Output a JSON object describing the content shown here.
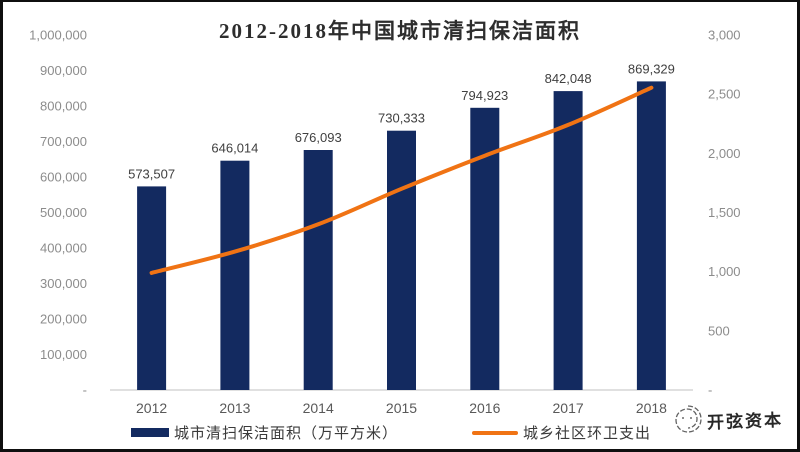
{
  "title": "2012-2018年中国城市清扫保洁面积",
  "legend": {
    "bar_label": "城市清扫保洁面积（万平方米）",
    "line_label": "城乡社区环卫支出"
  },
  "watermark": {
    "text": "开弦资本"
  },
  "chart_data": {
    "type": "bar+line",
    "title": "2012-2018年中国城市清扫保洁面积",
    "categories": [
      "2012",
      "2013",
      "2014",
      "2015",
      "2016",
      "2017",
      "2018"
    ],
    "series": [
      {
        "name": "城市清扫保洁面积（万平方米）",
        "type": "bar",
        "axis": "left",
        "color": "#132A60",
        "values": [
          573507,
          646014,
          676093,
          730333,
          794923,
          842048,
          869329
        ],
        "labels": [
          "573,507",
          "646,014",
          "676,093",
          "730,333",
          "794,923",
          "842,048",
          "869,329"
        ]
      },
      {
        "name": "城乡社区环卫支出",
        "type": "line",
        "axis": "right",
        "color": "#F07314",
        "values_estimated_from_axis": true,
        "values": [
          990,
          1170,
          1400,
          1700,
          1980,
          2240,
          2555
        ]
      }
    ],
    "left_axis": {
      "min": 0,
      "max": 1000000,
      "ticks": [
        "1,000,000",
        "900,000",
        "800,000",
        "700,000",
        "600,000",
        "500,000",
        "400,000",
        "300,000",
        "200,000",
        "100,000",
        "-"
      ]
    },
    "right_axis": {
      "min": 0,
      "max": 3000,
      "ticks": [
        "3,000",
        "2,500",
        "2,000",
        "1,500",
        "1,000",
        "500",
        "-"
      ]
    },
    "grid": false,
    "legend_position": "bottom"
  }
}
